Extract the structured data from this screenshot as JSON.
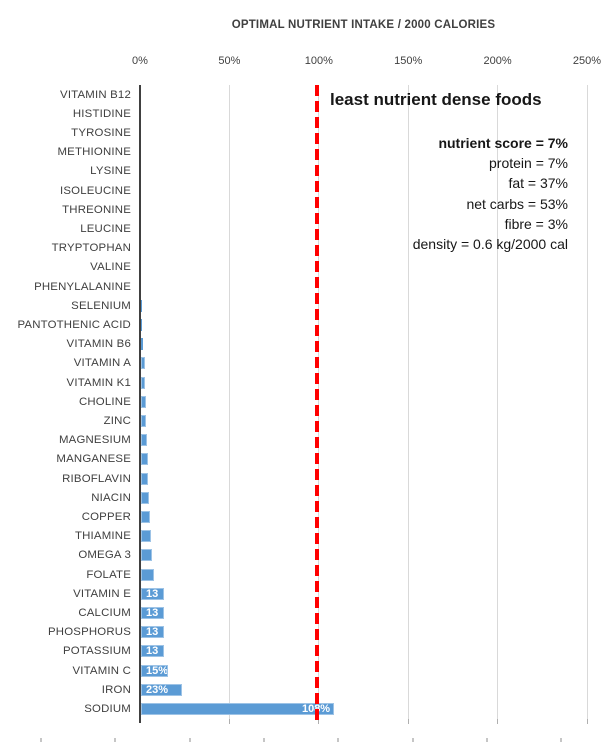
{
  "title": "OPTIMAL NUTRIENT INTAKE / 2000 CALORIES",
  "annotation": {
    "heading": "least nutrient dense foods",
    "stats": [
      "nutrient score = 7%",
      "protein = 7%",
      "fat = 37%",
      "net carbs = 53%",
      "fibre = 3%",
      "density = 0.6 kg/2000 cal"
    ]
  },
  "chart_data": {
    "type": "bar",
    "orientation": "horizontal",
    "title": "OPTIMAL NUTRIENT INTAKE / 2000 CALORIES",
    "xlabel": "",
    "ylabel": "",
    "xlim": [
      0,
      250
    ],
    "x_ticks": [
      "0%",
      "50%",
      "100%",
      "150%",
      "200%",
      "250%"
    ],
    "x_tick_values": [
      0,
      50,
      100,
      150,
      200,
      250
    ],
    "grid": true,
    "categories": [
      "VITAMIN B12",
      "HISTIDINE",
      "TYROSINE",
      "METHIONINE",
      "LYSINE",
      "ISOLEUCINE",
      "THREONINE",
      "LEUCINE",
      "TRYPTOPHAN",
      "VALINE",
      "PHENYLALANINE",
      "SELENIUM",
      "PANTOTHENIC ACID",
      "VITAMIN B6",
      "VITAMIN A",
      "VITAMIN K1",
      "CHOLINE",
      "ZINC",
      "MAGNESIUM",
      "MANGANESE",
      "RIBOFLAVIN",
      "NIACIN",
      "COPPER",
      "THIAMINE",
      "OMEGA 3",
      "FOLATE",
      "VITAMIN E",
      "CALCIUM",
      "PHOSPHORUS",
      "POTASSIUM",
      "VITAMIN C",
      "IRON",
      "SODIUM"
    ],
    "values": [
      0,
      0,
      0,
      0,
      0,
      0,
      0,
      0,
      0,
      0,
      0,
      0.5,
      0.7,
      1,
      2,
      2,
      3,
      3,
      3.5,
      4,
      4,
      4.5,
      5,
      5.5,
      6,
      7,
      13,
      13,
      13,
      13,
      15,
      23,
      108
    ],
    "bar_labels": [
      "",
      "",
      "",
      "",
      "",
      "",
      "",
      "",
      "",
      "",
      "",
      "",
      "",
      "",
      "",
      "",
      "",
      "",
      "",
      "",
      "",
      "",
      "",
      "",
      "",
      "",
      "13",
      "13",
      "13",
      "13",
      "15%",
      "23%",
      "108%"
    ],
    "reference_line": {
      "value": 100,
      "color": "#FF0000",
      "style": "dashed"
    },
    "bar_color": "#5B9BD5",
    "bar_border_color": "#9DC3E6",
    "bar_label_color": "#FFFFFF",
    "gridline_color": "#D9D9D9",
    "axis_color": "#404040",
    "legend": "none"
  }
}
